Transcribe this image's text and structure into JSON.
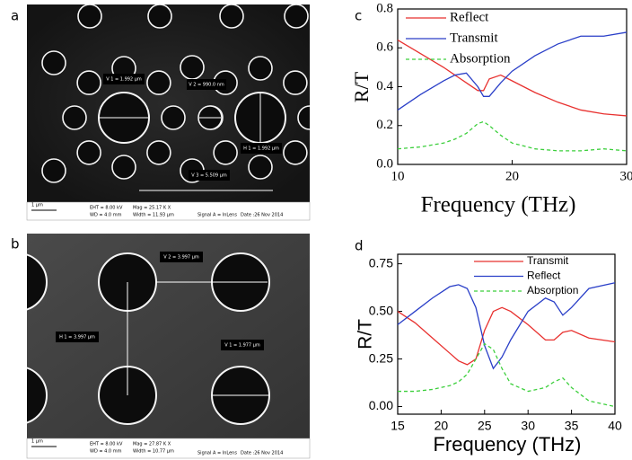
{
  "panels": [
    {
      "panel": "a",
      "annotations": [
        "V 1 = 1.992 µm",
        "V 2 = 990.0 nm",
        "H 1 = 1.992 µm",
        "V 3 = 5.509 µm"
      ],
      "scale": "1 µm",
      "info": [
        "EHT = 8.00 kV",
        "WD = 4.0 mm",
        "Mag = 25.17 K X",
        "Width = 11.93 µm",
        "Signal A = InLens",
        "Date :26 Nov 2014"
      ]
    },
    {
      "panel": "b",
      "annotations": [
        "V 2 = 3.997 µm",
        "H 1 = 3.997 µm",
        "V 1 = 1.977 µm"
      ],
      "scale": "1 µm",
      "info": [
        "EHT = 8.00 kV",
        "WD = 4.0 mm",
        "Mag = 27.87 K X",
        "Width = 10.77 µm",
        "Signal A = InLens",
        "Date :26 Nov 2014"
      ]
    }
  ],
  "chart_data": [
    {
      "type": "line",
      "panel": "c",
      "x_label": "Frequency (THz)",
      "y_label": "R/T",
      "x": [
        10,
        12,
        14,
        15,
        16,
        17,
        17.5,
        18,
        19,
        20,
        22,
        24,
        26,
        28,
        30
      ],
      "series": [
        {
          "name": "Reflect",
          "color": "#e8312f",
          "values": [
            0.64,
            0.57,
            0.5,
            0.46,
            0.42,
            0.38,
            0.38,
            0.44,
            0.46,
            0.43,
            0.37,
            0.32,
            0.28,
            0.26,
            0.25
          ]
        },
        {
          "name": "Transmit",
          "color": "#2a3fc8",
          "values": [
            0.28,
            0.36,
            0.43,
            0.46,
            0.47,
            0.4,
            0.35,
            0.35,
            0.42,
            0.48,
            0.56,
            0.62,
            0.66,
            0.66,
            0.68
          ]
        },
        {
          "name": "Absorption",
          "color": "#3ccf3c",
          "linestyle": "dashed",
          "values": [
            0.08,
            0.09,
            0.11,
            0.13,
            0.16,
            0.21,
            0.22,
            0.2,
            0.15,
            0.11,
            0.08,
            0.07,
            0.07,
            0.08,
            0.07
          ]
        }
      ],
      "xlim": [
        10,
        30
      ],
      "xticks": [
        10,
        20,
        30
      ],
      "ylim": [
        0,
        0.8
      ],
      "yticks": [
        {
          "value": 0,
          "label": "0.0"
        },
        0.2,
        0.4,
        0.6,
        0.8
      ]
    },
    {
      "type": "line",
      "panel": "d",
      "x_label": "Frequency (THz)",
      "y_label": "R/T",
      "x": [
        15,
        17,
        19,
        21,
        22,
        23,
        24,
        25,
        26,
        27,
        28,
        30,
        32,
        33,
        34,
        35,
        37,
        40
      ],
      "series": [
        {
          "name": "Transmit",
          "color": "#e8312f",
          "values": [
            0.5,
            0.44,
            0.36,
            0.28,
            0.24,
            0.22,
            0.25,
            0.4,
            0.5,
            0.52,
            0.5,
            0.43,
            0.35,
            0.35,
            0.39,
            0.4,
            0.36,
            0.34
          ]
        },
        {
          "name": "Reflect",
          "color": "#2a3fc8",
          "values": [
            0.43,
            0.5,
            0.57,
            0.63,
            0.64,
            0.62,
            0.52,
            0.32,
            0.2,
            0.26,
            0.35,
            0.5,
            0.57,
            0.55,
            0.48,
            0.52,
            0.62,
            0.65
          ]
        },
        {
          "name": "Absorption",
          "color": "#3ccf3c",
          "linestyle": "dashed",
          "values": [
            0.08,
            0.08,
            0.09,
            0.11,
            0.13,
            0.17,
            0.25,
            0.33,
            0.3,
            0.2,
            0.12,
            0.08,
            0.1,
            0.13,
            0.15,
            0.1,
            0.03,
            0.0
          ]
        }
      ],
      "xlim": [
        15,
        40
      ],
      "xticks": [
        15,
        20,
        25,
        30,
        35,
        40
      ],
      "ylim": [
        -0.04,
        0.8
      ],
      "yticks": [
        {
          "value": 0,
          "label": "0.00"
        },
        0.25,
        {
          "value": 0.5,
          "label": "0.50"
        },
        0.75
      ]
    }
  ]
}
